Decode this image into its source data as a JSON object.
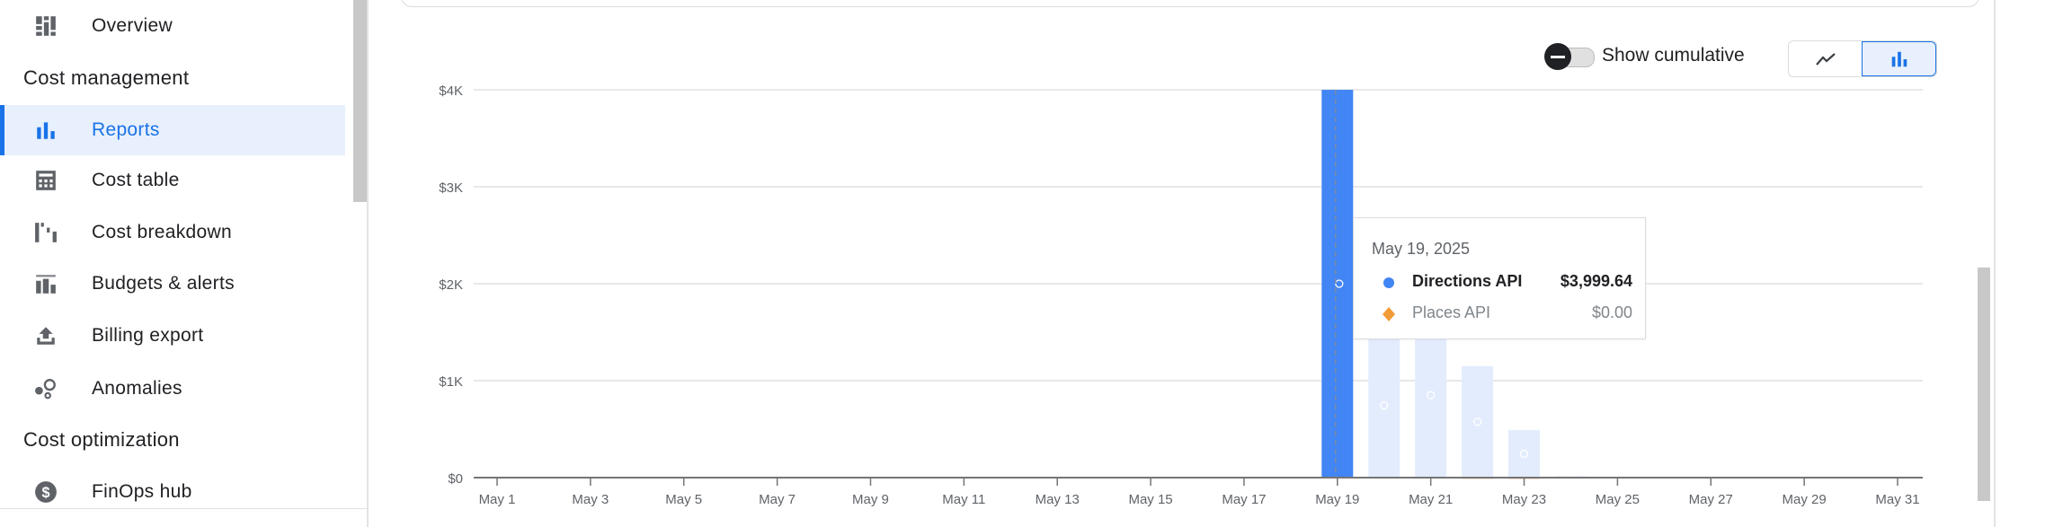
{
  "sidebar": {
    "items_top": [
      {
        "label": "Overview",
        "icon": "dashboard-icon"
      }
    ],
    "sections": [
      {
        "title": "Cost management",
        "items": [
          {
            "label": "Reports",
            "icon": "bar-chart-icon",
            "active": true
          },
          {
            "label": "Cost table",
            "icon": "calculator-table-icon"
          },
          {
            "label": "Cost breakdown",
            "icon": "waterfall-icon"
          },
          {
            "label": "Budgets & alerts",
            "icon": "budget-icon"
          },
          {
            "label": "Billing export",
            "icon": "upload-icon"
          },
          {
            "label": "Anomalies",
            "icon": "anomalies-icon"
          }
        ]
      },
      {
        "title": "Cost optimization",
        "items": [
          {
            "label": "FinOps hub",
            "icon": "dollar-circle-icon"
          }
        ]
      }
    ]
  },
  "controls": {
    "cumulative_label": "Show cumulative",
    "cumulative_on": false,
    "chart_type_options": [
      "line",
      "bar"
    ],
    "chart_type_selected": "bar"
  },
  "tooltip": {
    "date": "May 19, 2025",
    "rows": [
      {
        "name": "Directions API",
        "value": "$3,999.64",
        "color": "#4285f4",
        "marker": "circle"
      },
      {
        "name": "Places API",
        "value": "$0.00",
        "color": "#f29c38",
        "marker": "diamond"
      }
    ]
  },
  "chart_data": {
    "type": "bar",
    "stacked": true,
    "x_tick_labels": [
      "May 1",
      "May 3",
      "May 5",
      "May 7",
      "May 9",
      "May 11",
      "May 13",
      "May 15",
      "May 17",
      "May 19",
      "May 21",
      "May 23",
      "May 25",
      "May 27",
      "May 29",
      "May 31"
    ],
    "y_tick_labels": [
      "$0",
      "$1K",
      "$2K",
      "$3K",
      "$4K"
    ],
    "ylim": [
      0,
      4000
    ],
    "grid": true,
    "highlighted_day": 19,
    "series": [
      {
        "name": "Directions API",
        "color": "#4285f4",
        "values": [
          0,
          0,
          0,
          0,
          0,
          0,
          0,
          0,
          0,
          0,
          0,
          0,
          0,
          0,
          0,
          0,
          0,
          0,
          3999.64,
          1490,
          1700,
          1150,
          490,
          15,
          0,
          0,
          0,
          0,
          0,
          0,
          0
        ]
      },
      {
        "name": "Places API",
        "color": "#f29c38",
        "values": [
          0,
          0,
          0,
          0,
          0,
          0,
          0,
          0,
          0,
          0,
          0,
          0,
          0,
          0,
          0,
          0,
          0,
          0,
          0,
          0,
          0,
          10,
          8,
          0,
          0,
          0,
          0,
          0,
          0,
          0,
          0
        ]
      }
    ]
  }
}
